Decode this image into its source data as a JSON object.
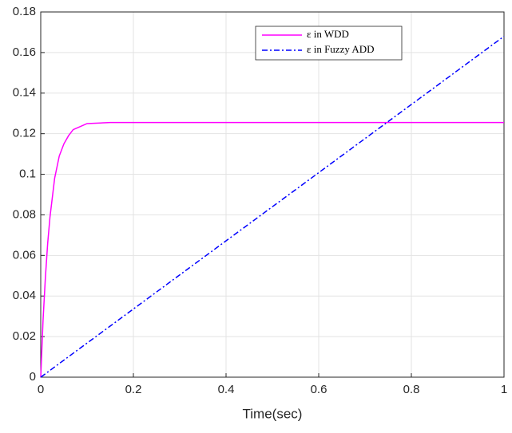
{
  "chart_data": {
    "type": "line",
    "x_label": "Time(sec)",
    "x": [
      0,
      0.005,
      0.01,
      0.015,
      0.02,
      0.03,
      0.04,
      0.05,
      0.06,
      0.07,
      0.08,
      0.1,
      0.15,
      0.2,
      0.4,
      0.6,
      0.8,
      1
    ],
    "series": [
      {
        "name": "ε in WDD",
        "color": "#ff00ff",
        "style": "solid",
        "values": [
          0,
          0.028,
          0.049,
          0.066,
          0.079,
          0.098,
          0.109,
          0.115,
          0.119,
          0.122,
          0.123,
          0.125,
          0.1255,
          0.1255,
          0.1255,
          0.1255,
          0.1255,
          0.1255
        ]
      },
      {
        "name": "ε in Fuzzy ADD",
        "color": "#0000ff",
        "style": "dash-dot",
        "values": [
          0,
          0.00084,
          0.00168,
          0.00252,
          0.00336,
          0.00504,
          0.00672,
          0.0084,
          0.01008,
          0.01176,
          0.01344,
          0.0168,
          0.0252,
          0.0336,
          0.0672,
          0.1008,
          0.1344,
          0.168
        ]
      }
    ],
    "xlim": [
      0,
      1
    ],
    "xticks": [
      0,
      0.2,
      0.4,
      0.6,
      0.8,
      1
    ],
    "ylim": [
      0,
      0.18
    ],
    "yticks": [
      0,
      0.02,
      0.04,
      0.06,
      0.08,
      0.1,
      0.12,
      0.14,
      0.16,
      0.18
    ],
    "grid": true,
    "legend": "top-right"
  }
}
